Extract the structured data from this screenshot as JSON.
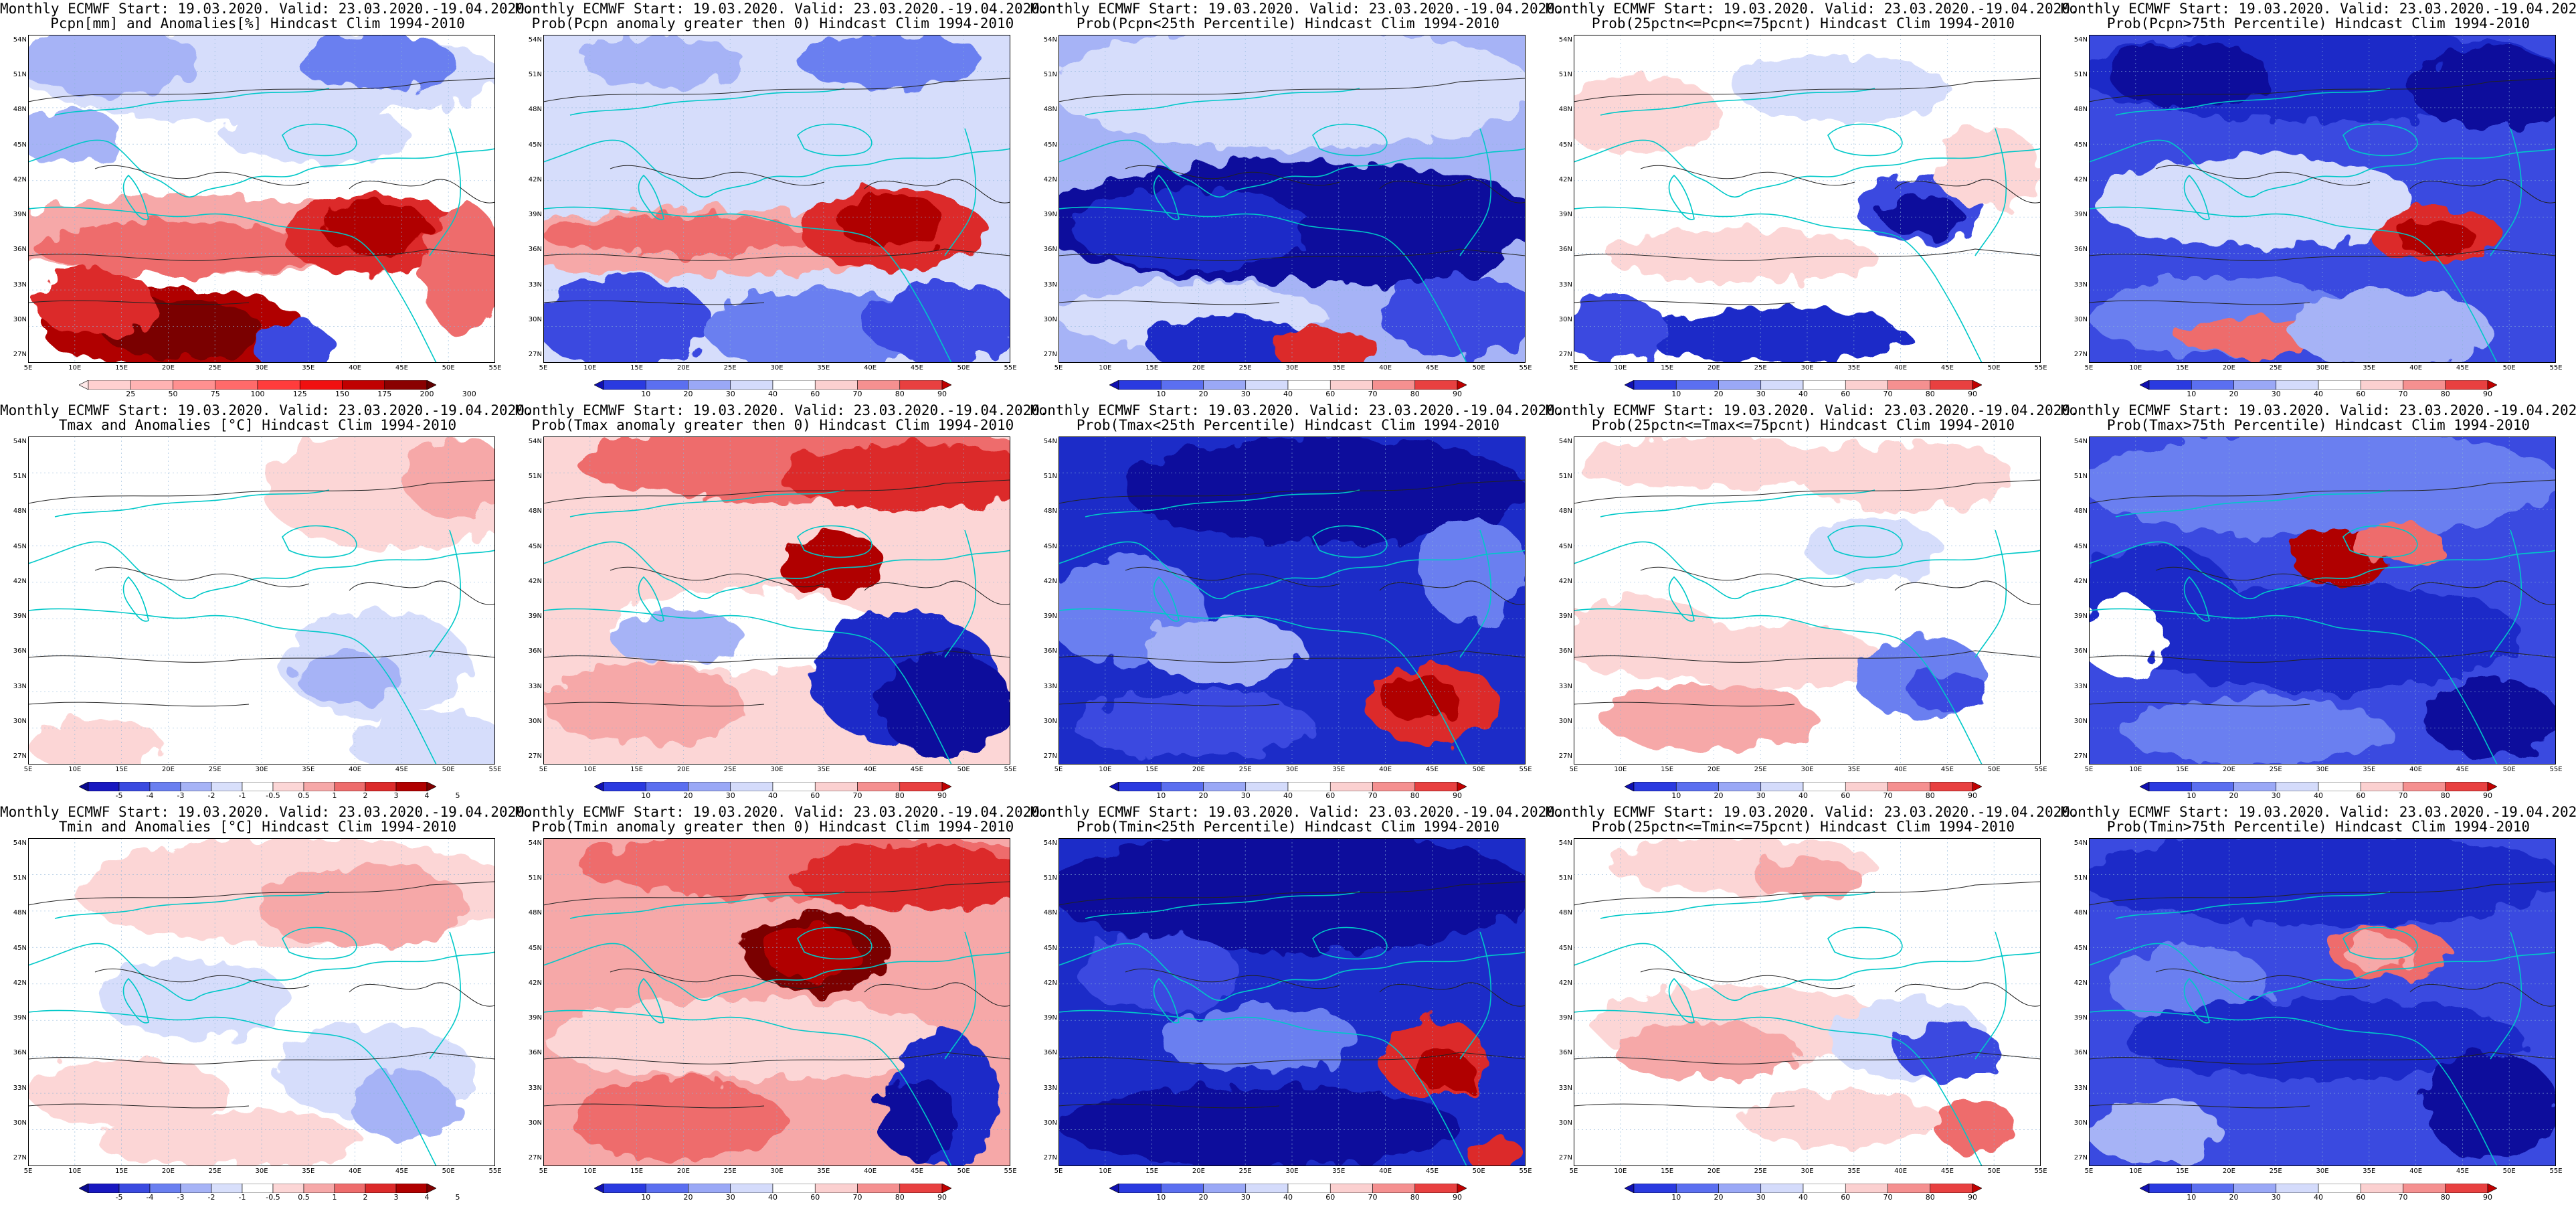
{
  "page": {
    "columns": 5,
    "rows": 3
  },
  "axes": {
    "lat_labels": [
      "54N",
      "51N",
      "48N",
      "45N",
      "42N",
      "39N",
      "36N",
      "33N",
      "30N",
      "27N"
    ],
    "lon_labels": [
      "5E",
      "10E",
      "15E",
      "20E",
      "25E",
      "30E",
      "35E",
      "40E",
      "45E",
      "50E",
      "55E"
    ]
  },
  "colorbars": {
    "precip_anom": {
      "ticks": [
        "25",
        "50",
        "75",
        "100",
        "125",
        "150",
        "175",
        "200",
        "300"
      ],
      "colors": [
        "#ffe9e9",
        "#ffd0d0",
        "#ffb3b3",
        "#ff9090",
        "#ff6a6a",
        "#ff3c3c",
        "#f01010",
        "#c00000",
        "#8a0000",
        "#600000"
      ],
      "arrows": "both"
    },
    "prob": {
      "ticks": [
        "10",
        "20",
        "30",
        "40",
        "60",
        "70",
        "80",
        "90"
      ],
      "colors": [
        "#1010b0",
        "#2a3ae0",
        "#5b6ff0",
        "#9aa8f6",
        "#d4dbfb",
        "#ffffff",
        "#fbd0d0",
        "#f59090",
        "#e84040",
        "#c00000"
      ],
      "arrows": "both"
    },
    "temp_anom": {
      "ticks": [
        "-5",
        "-4",
        "-3",
        "-2",
        "-1",
        "-0.5",
        "0.5",
        "1",
        "2",
        "3",
        "4",
        "5"
      ],
      "colors": [
        "#0a0a90",
        "#1818c0",
        "#3a4ae0",
        "#6a7ff0",
        "#a6b3f6",
        "#d8dffb",
        "#ffffff",
        "#fcd6d6",
        "#f6a8a8",
        "#ee6c6c",
        "#dc2a2a",
        "#b00000",
        "#800000"
      ],
      "arrows": "both"
    }
  },
  "panels": [
    {
      "line1": "Monthly ECMWF Start: 19.03.2020. Valid: 23.03.2020.-19.04.2020.",
      "line2": "Pcpn[mm] and Anomalies[%] Hindcast Clim 1994-2010",
      "colorbar": "precip_anom",
      "pattern": "precip"
    },
    {
      "line1": "Monthly ECMWF Start: 19.03.2020. Valid: 23.03.2020.-19.04.2020.",
      "line2": "Prob(Pcpn anomaly greater then 0) Hindcast Clim 1994-2010",
      "colorbar": "prob",
      "pattern": "precip_prob"
    },
    {
      "line1": "Monthly ECMWF Start: 19.03.2020. Valid: 23.03.2020.-19.04.2020.",
      "line2": "Prob(Pcpn<25th Percentile) Hindcast Clim 1994-2010",
      "colorbar": "prob",
      "pattern": "blue_band"
    },
    {
      "line1": "Monthly ECMWF Start: 19.03.2020. Valid: 23.03.2020.-19.04.2020.",
      "line2": "Prob(25pctn<=Pcpn<=75pcnt) Hindcast Clim 1994-2010",
      "colorbar": "prob",
      "pattern": "mixed"
    },
    {
      "line1": "Monthly ECMWF Start: 19.03.2020. Valid: 23.03.2020.-19.04.2020.",
      "line2": "Prob(Pcpn>75th Percentile) Hindcast Clim 1994-2010",
      "colorbar": "prob",
      "pattern": "blue_red_east"
    },
    {
      "line1": "Monthly ECMWF Start: 19.03.2020. Valid: 23.03.2020.-19.04.2020.",
      "line2": "Tmax and Anomalies [°C] Hindcast Clim 1994-2010",
      "colorbar": "temp_anom",
      "pattern": "tanom_max"
    },
    {
      "line1": "Monthly ECMWF Start: 19.03.2020. Valid: 23.03.2020.-19.04.2020.",
      "line2": "Prob(Tmax anomaly greater then 0) Hindcast Clim 1994-2010",
      "colorbar": "prob",
      "pattern": "warm_north"
    },
    {
      "line1": "Monthly ECMWF Start: 19.03.2020. Valid: 23.03.2020.-19.04.2020.",
      "line2": "Prob(Tmax<25th Percentile) Hindcast Clim 1994-2010",
      "colorbar": "prob",
      "pattern": "blue_redspot"
    },
    {
      "line1": "Monthly ECMWF Start: 19.03.2020. Valid: 23.03.2020.-19.04.2020.",
      "line2": "Prob(25pctn<=Tmax<=75pcnt) Hindcast Clim 1994-2010",
      "colorbar": "prob",
      "pattern": "mixed_light"
    },
    {
      "line1": "Monthly ECMWF Start: 19.03.2020. Valid: 23.03.2020.-19.04.2020.",
      "line2": "Prob(Tmax>75th Percentile) Hindcast Clim 1994-2010",
      "colorbar": "prob",
      "pattern": "blue_red_blacksea"
    },
    {
      "line1": "Monthly ECMWF Start: 19.03.2020. Valid: 23.03.2020.-19.04.2020.",
      "line2": "Tmin and Anomalies [°C] Hindcast Clim 1994-2010",
      "colorbar": "temp_anom",
      "pattern": "tanom_min"
    },
    {
      "line1": "Monthly ECMWF Start: 19.03.2020. Valid: 23.03.2020.-19.04.2020.",
      "line2": "Prob(Tmin anomaly greater then 0) Hindcast Clim 1994-2010",
      "colorbar": "prob",
      "pattern": "warm_ne"
    },
    {
      "line1": "Monthly ECMWF Start: 19.03.2020. Valid: 23.03.2020.-19.04.2020.",
      "line2": "Prob(Tmin<25th Percentile) Hindcast Clim 1994-2010",
      "colorbar": "prob",
      "pattern": "deep_blue"
    },
    {
      "line1": "Monthly ECMWF Start: 19.03.2020. Valid: 23.03.2020.-19.04.2020.",
      "line2": "Prob(25pctn<=Tmin<=75pcnt) Hindcast Clim 1994-2010",
      "colorbar": "prob",
      "pattern": "mixed_pink"
    },
    {
      "line1": "Monthly ECMWF Start: 19.03.2020. Valid: 23.03.2020.-19.04.2020.",
      "line2": "Prob(Tmin>75th Percentile) Hindcast Clim 1994-2010",
      "colorbar": "prob",
      "pattern": "blue_pinkspot"
    }
  ]
}
